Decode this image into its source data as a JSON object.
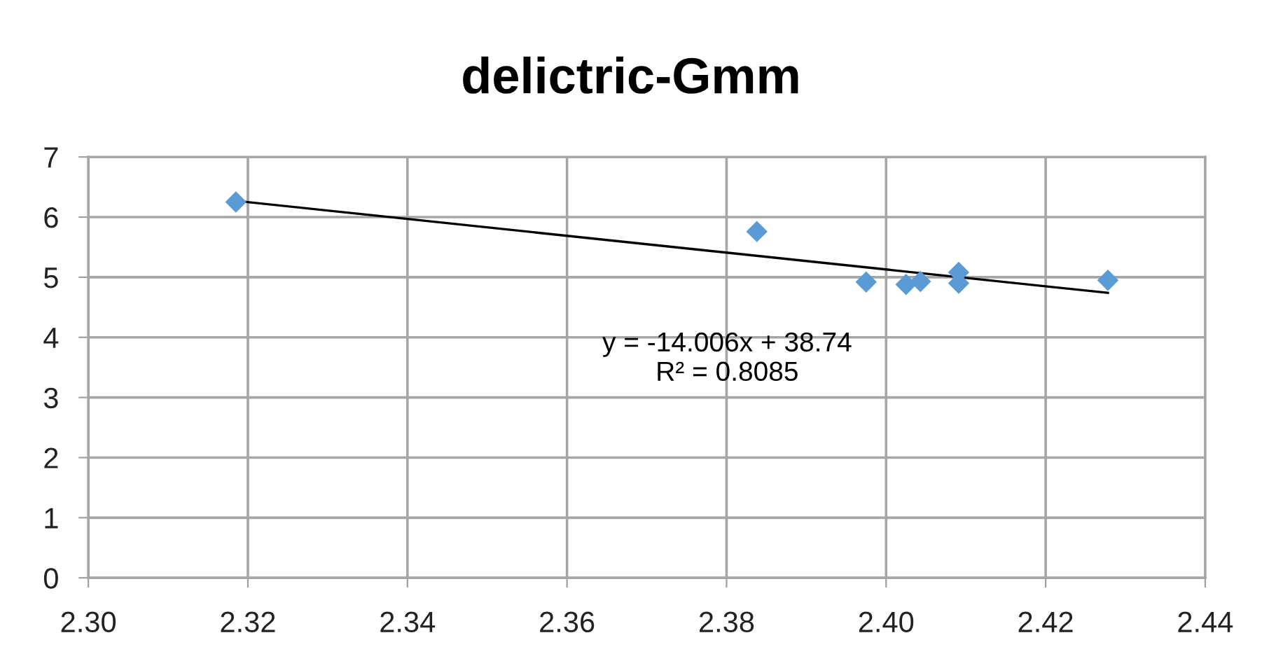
{
  "chart_data": {
    "type": "scatter",
    "title": "delictric-Gmm",
    "series": [
      {
        "color": "#5b9bd5",
        "marker": "diamond",
        "x": [
          2.3185,
          2.3838,
          2.3975,
          2.4025,
          2.4043,
          2.4091,
          2.4091,
          2.4278
        ],
        "values": [
          6.25,
          5.76,
          4.92,
          4.88,
          4.93,
          5.08,
          4.9,
          4.95
        ]
      },
      {
        "type": "line",
        "color": "#000000",
        "marker": "none",
        "line_style": "solid",
        "x": [
          2.3185,
          2.4278
        ],
        "values": [
          6.27,
          4.74
        ]
      }
    ],
    "annotations": [
      "y = -14.006x + 38.74\nR² = 0.8085"
    ],
    "xlim": [
      2.3,
      2.44
    ],
    "xticks": [
      {
        "value": 2.3,
        "label": "2.30"
      },
      {
        "value": 2.32,
        "label": "2.32"
      },
      {
        "value": 2.34,
        "label": "2.34"
      },
      {
        "value": 2.36,
        "label": "2.36"
      },
      {
        "value": 2.38,
        "label": "2.38"
      },
      {
        "value": 2.4,
        "label": "2.40"
      },
      {
        "value": 2.42,
        "label": "2.42"
      },
      {
        "value": 2.44,
        "label": "2.44"
      }
    ],
    "ylim": [
      0,
      7
    ],
    "yticks": [
      0,
      1,
      2,
      3,
      4,
      5,
      6,
      7
    ],
    "grid": true,
    "legend": false
  }
}
